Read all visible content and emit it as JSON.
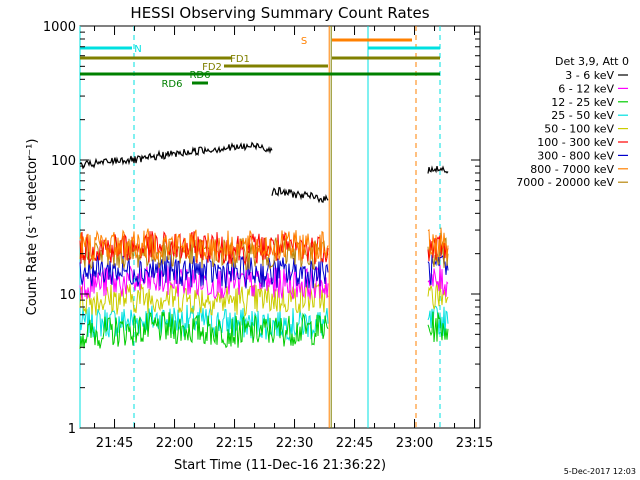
{
  "chart_data": {
    "type": "line",
    "title": "HESSI Observing Summary Count Rates",
    "xlabel": "Start Time (11-Dec-16 21:36:22)",
    "ylabel": "Count Rate (s⁻¹ detector⁻¹)",
    "y_scale": "log",
    "ylim": [
      1,
      1000
    ],
    "x_unit": "minutes after 21:36:22",
    "xlim": [
      0,
      100
    ],
    "x_ticks": [
      "21:45",
      "22:00",
      "22:15",
      "22:30",
      "22:45",
      "23:00",
      "23:15"
    ],
    "y_ticks": [
      "1",
      "10",
      "100",
      "1000"
    ],
    "legend_title": "Det 3,9, Att 0",
    "legend_position": "outside-right",
    "series": [
      {
        "name": "3 - 6 keV",
        "color": "#000000",
        "segments": [
          {
            "t": [
              0,
              5,
              10,
              15,
              20,
              25,
              30,
              35,
              40,
              45,
              48
            ],
            "v": [
              90,
              95,
              100,
              100,
              108,
              112,
              118,
              122,
              125,
              128,
              118
            ]
          },
          {
            "t": [
              48,
              50,
              55,
              60,
              62
            ],
            "v": [
              58,
              58,
              55,
              52,
              50
            ]
          },
          {
            "t": [
              87,
              88,
              90,
              92
            ],
            "v": [
              82,
              88,
              85,
              82
            ]
          }
        ]
      },
      {
        "name": "6 - 12 keV",
        "color": "#ff00ff",
        "segments": [
          {
            "t": [
              0,
              20,
              40,
              62
            ],
            "v": [
              12,
              12.5,
              12,
              12
            ]
          },
          {
            "t": [
              87,
              90,
              92
            ],
            "v": [
              12,
              12.5,
              12
            ]
          }
        ]
      },
      {
        "name": "12 - 25 keV",
        "color": "#00cc00",
        "segments": [
          {
            "t": [
              0,
              20,
              40,
              62
            ],
            "v": [
              5,
              5.6,
              5.2,
              5.5
            ]
          },
          {
            "t": [
              87,
              90,
              92
            ],
            "v": [
              5.5,
              5.8,
              5.5
            ]
          }
        ]
      },
      {
        "name": "25 - 50 keV",
        "color": "#00e0e0",
        "segments": [
          {
            "t": [
              0,
              20,
              40,
              62
            ],
            "v": [
              6,
              6.5,
              6,
              6
            ]
          },
          {
            "t": [
              87,
              90,
              92
            ],
            "v": [
              6,
              6.5,
              6
            ]
          }
        ]
      },
      {
        "name": "50 - 100 keV",
        "color": "#cccc00",
        "segments": [
          {
            "t": [
              0,
              20,
              40,
              62
            ],
            "v": [
              9,
              9.5,
              9,
              9.5
            ]
          },
          {
            "t": [
              87,
              90,
              92
            ],
            "v": [
              9.5,
              10,
              9.5
            ]
          }
        ]
      },
      {
        "name": "100 - 300 keV",
        "color": "#ff0000",
        "segments": [
          {
            "t": [
              0,
              20,
              40,
              62
            ],
            "v": [
              22,
              22.5,
              22,
              22
            ]
          },
          {
            "t": [
              87,
              90,
              92
            ],
            "v": [
              22,
              23,
              22
            ]
          }
        ]
      },
      {
        "name": "300 - 800 keV",
        "color": "#0000cc",
        "segments": [
          {
            "t": [
              0,
              20,
              40,
              62
            ],
            "v": [
              15,
              15,
              14.5,
              14.5
            ]
          },
          {
            "t": [
              87,
              90,
              92
            ],
            "v": [
              15,
              15.5,
              15
            ]
          }
        ]
      },
      {
        "name": "800 - 7000 keV",
        "color": "#ff8000",
        "segments": [
          {
            "t": [
              0,
              20,
              40,
              62
            ],
            "v": [
              23,
              23.5,
              22.5,
              23
            ]
          },
          {
            "t": [
              87,
              90,
              92
            ],
            "v": [
              23,
              24,
              23
            ]
          }
        ]
      },
      {
        "name": "7000 - 20000 keV",
        "color": "#b8860b",
        "segments": [
          {
            "t": [
              0,
              20,
              40,
              62
            ],
            "v": [
              20,
              20.5,
              20,
              20
            ]
          },
          {
            "t": [
              87,
              90,
              92
            ],
            "v": [
              20,
              21,
              20
            ]
          }
        ]
      }
    ],
    "flags": [
      {
        "label": "N",
        "color": "#00e0e0",
        "t0": 0,
        "t1": 13,
        "label_t": 14.5
      },
      {
        "label": "S",
        "color": "#ff8000",
        "t0": 63,
        "t1": 83,
        "label_t": 56
      },
      {
        "label": "",
        "color": "#00e0e0",
        "t0": 72,
        "t1": 90
      },
      {
        "label": "FD1",
        "color": "#808000",
        "t0": 0,
        "t1": 38,
        "label_t": 40
      },
      {
        "label": "",
        "color": "#808000",
        "t0": 63,
        "t1": 90
      },
      {
        "label": "FD2",
        "color": "#808000",
        "t0": 36,
        "t1": 62,
        "label_t": 33
      },
      {
        "label": "RD6",
        "color": "#008000",
        "t0": 0,
        "t1": 90,
        "label_t": 30
      },
      {
        "label": "RD6",
        "color": "#008000",
        "t0": 28,
        "t1": 32,
        "label_t": 23
      }
    ],
    "verticals": [
      {
        "t": 0,
        "color": "#00e0e0",
        "dashed": false
      },
      {
        "t": 13.5,
        "color": "#00e0e0",
        "dashed": true
      },
      {
        "t": 62.3,
        "color": "#ff8000",
        "dashed": false
      },
      {
        "t": 62.8,
        "color": "#808000",
        "dashed": false
      },
      {
        "t": 72,
        "color": "#00e0e0",
        "dashed": false
      },
      {
        "t": 84,
        "color": "#ff8000",
        "dashed": true
      },
      {
        "t": 90,
        "color": "#00e0e0",
        "dashed": true
      }
    ]
  },
  "footer": {
    "timestamp": "5-Dec-2017 12:03"
  }
}
